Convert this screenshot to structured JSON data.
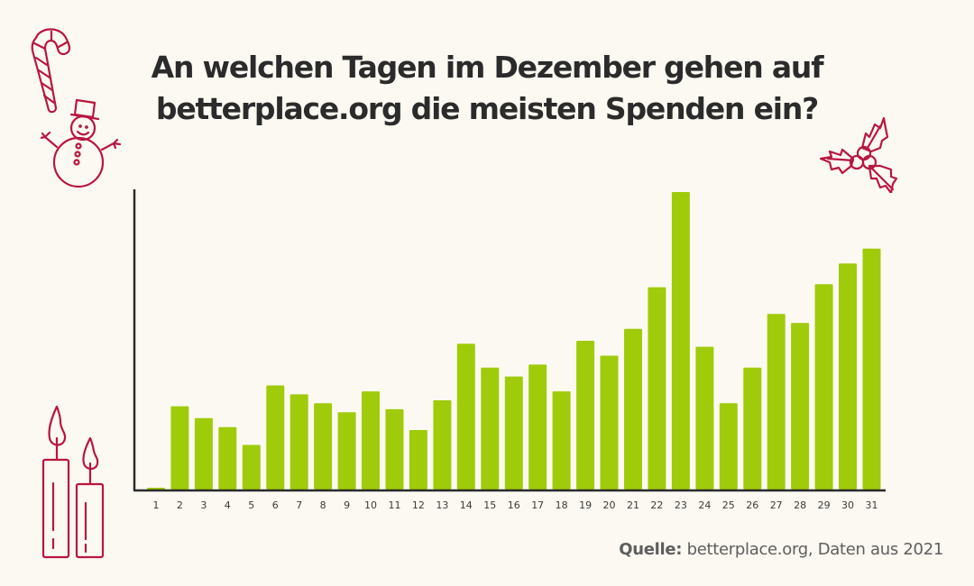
{
  "header": {
    "title_line1": "An welchen Tagen im Dezember gehen auf",
    "title_line2": "betterplace.org die meisten Spenden ein?"
  },
  "footer": {
    "source_label": "Quelle:",
    "source_text": " betterplace.org, Daten aus 2021"
  },
  "colors": {
    "bar": "#a0cb0b",
    "axis": "#2b2b2b",
    "decoration": "#b8163f",
    "background": "#fbf9f1"
  },
  "decorations": [
    "candy-cane-icon",
    "snowman-icon",
    "holly-icon",
    "candles-icon"
  ],
  "chart_data": {
    "type": "bar",
    "title": "An welchen Tagen im Dezember gehen auf betterplace.org die meisten Spenden ein?",
    "xlabel": "",
    "ylabel": "",
    "y_units": "relative donation volume (day 23 = 100, no y-axis scale shown)",
    "ylim": [
      0,
      100
    ],
    "grid": false,
    "legend": "none",
    "categories": [
      "1",
      "2",
      "3",
      "4",
      "5",
      "6",
      "7",
      "8",
      "9",
      "10",
      "11",
      "12",
      "13",
      "14",
      "15",
      "16",
      "17",
      "18",
      "19",
      "20",
      "21",
      "22",
      "23",
      "24",
      "25",
      "26",
      "27",
      "28",
      "29",
      "30",
      "31"
    ],
    "values": [
      0.6,
      28,
      24,
      21,
      15,
      35,
      32,
      29,
      26,
      33,
      27,
      20,
      30,
      49,
      41,
      38,
      42,
      33,
      50,
      45,
      54,
      68,
      100,
      48,
      29,
      41,
      59,
      56,
      69,
      76,
      81
    ]
  }
}
